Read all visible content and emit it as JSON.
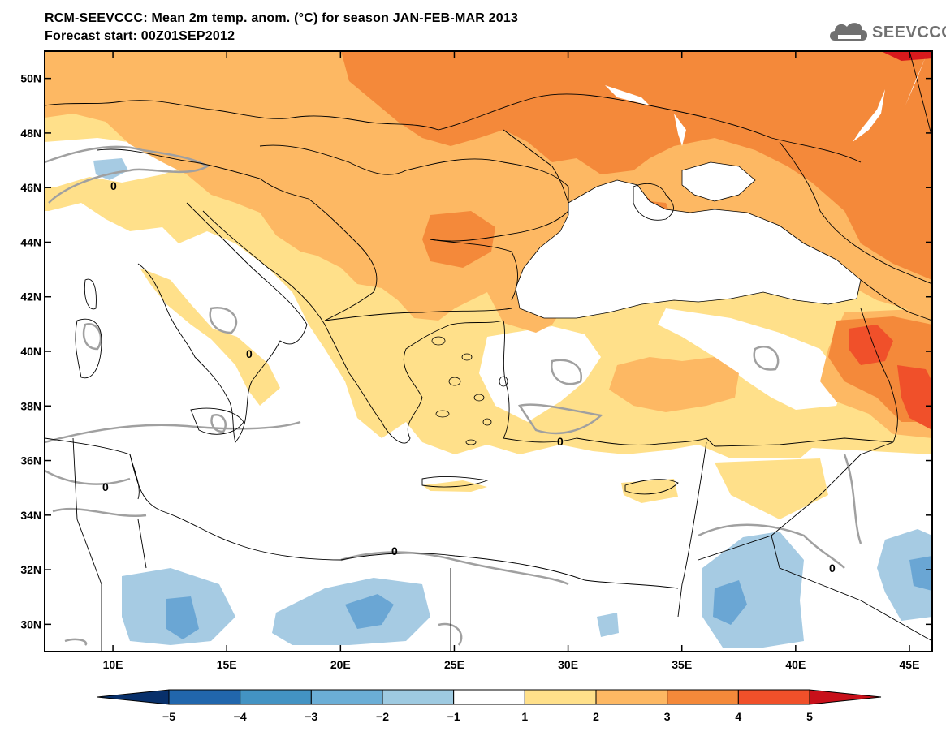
{
  "header": {
    "title": "RCM-SEEVCCC: Mean 2m temp. anom. (°C) for season JAN-FEB-MAR 2013",
    "subtitle": "Forecast start: 00Z01SEP2012"
  },
  "logo": {
    "text": "SEEVCCC",
    "icon": "cloud-icon"
  },
  "map": {
    "lat_range": [
      29,
      51
    ],
    "lon_range": [
      7,
      46
    ],
    "lat_ticks": [
      "30N",
      "32N",
      "34N",
      "36N",
      "38N",
      "40N",
      "42N",
      "44N",
      "46N",
      "48N",
      "50N"
    ],
    "lon_ticks": [
      "10E",
      "15E",
      "20E",
      "25E",
      "30E",
      "35E",
      "40E",
      "45E"
    ],
    "contour_label": "0"
  },
  "colorbar": {
    "ticks": [
      "−5",
      "−4",
      "−3",
      "−2",
      "−1",
      "1",
      "2",
      "3",
      "4",
      "5"
    ],
    "colors": [
      "#08306b",
      "#2166ac",
      "#4393c3",
      "#6baed6",
      "#9ecae1",
      "#ffffff",
      "#ffe08a",
      "#fdb863",
      "#f4893a",
      "#f0502a",
      "#c8101a"
    ]
  },
  "colors": {
    "anom_1_2": "#ffe08a",
    "anom_2_3": "#fdb863",
    "anom_3_4": "#f4893a",
    "anom_4_5": "#f0502a",
    "anom_gt_5": "#d7191c",
    "anom_m1_m2": "#a6cbe3",
    "anom_m2_m3": "#6aa6d4",
    "zero_contour": "#a0a0a0"
  }
}
